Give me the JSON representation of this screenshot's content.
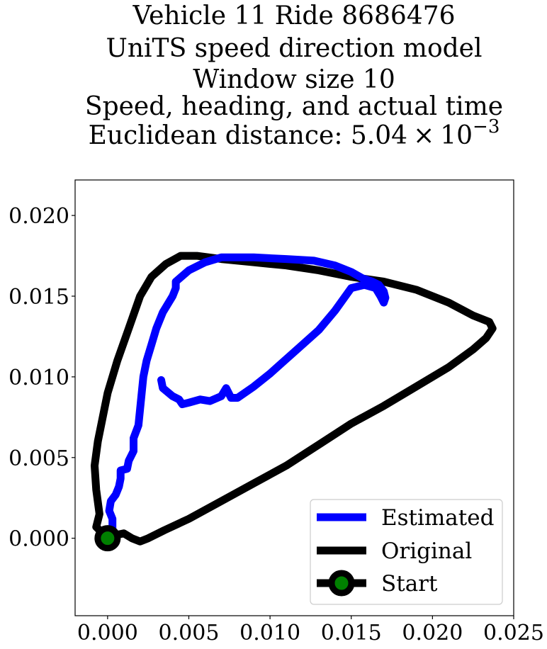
{
  "chart_data": {
    "type": "line",
    "title_lines": [
      "Vehicle 11 Ride 8686476",
      "UniTS speed direction model",
      "Window size 10",
      "Speed, heading, and actual time"
    ],
    "title_distance_prefix": "Euclidean distance: 5.04",
    "title_distance_times": "×",
    "title_distance_base": "10",
    "title_distance_exp": "−3",
    "xlim": [
      -0.002,
      0.025
    ],
    "ylim": [
      -0.0048,
      0.0222
    ],
    "xticks": [
      0.0,
      0.005,
      0.01,
      0.015,
      0.02,
      0.025
    ],
    "xtick_labels": [
      "0.000",
      "0.005",
      "0.010",
      "0.015",
      "0.020",
      "0.025"
    ],
    "yticks": [
      0.0,
      0.005,
      0.01,
      0.015,
      0.02
    ],
    "ytick_labels": [
      "0.000",
      "0.005",
      "0.010",
      "0.015",
      "0.020"
    ],
    "grid": false,
    "legend_position": "lower-right",
    "series": [
      {
        "name": "Estimated",
        "color": "#0000ff",
        "points": [
          [
            0.0,
            0.0
          ],
          [
            0.0003,
            0.0005
          ],
          [
            0.0003,
            0.0012
          ],
          [
            0.0001,
            0.0017
          ],
          [
            0.0002,
            0.0023
          ],
          [
            0.0005,
            0.0027
          ],
          [
            0.0007,
            0.0032
          ],
          [
            0.0008,
            0.0037
          ],
          [
            0.0008,
            0.0042
          ],
          [
            0.0012,
            0.0043
          ],
          [
            0.0013,
            0.0048
          ],
          [
            0.0016,
            0.0054
          ],
          [
            0.0016,
            0.0062
          ],
          [
            0.0019,
            0.007
          ],
          [
            0.002,
            0.008
          ],
          [
            0.0021,
            0.009
          ],
          [
            0.0022,
            0.01
          ],
          [
            0.0024,
            0.011
          ],
          [
            0.0027,
            0.012
          ],
          [
            0.003,
            0.013
          ],
          [
            0.0034,
            0.014
          ],
          [
            0.004,
            0.015
          ],
          [
            0.0042,
            0.0155
          ],
          [
            0.0042,
            0.0159
          ],
          [
            0.005,
            0.0166
          ],
          [
            0.006,
            0.0171
          ],
          [
            0.007,
            0.0174
          ],
          [
            0.009,
            0.0174
          ],
          [
            0.011,
            0.0173
          ],
          [
            0.0127,
            0.0172
          ],
          [
            0.014,
            0.0169
          ],
          [
            0.015,
            0.0165
          ],
          [
            0.0157,
            0.0161
          ],
          [
            0.0163,
            0.0159
          ],
          [
            0.0167,
            0.0157
          ],
          [
            0.017,
            0.0153
          ],
          [
            0.0171,
            0.0149
          ],
          [
            0.017,
            0.0146
          ],
          [
            0.0168,
            0.015
          ],
          [
            0.0165,
            0.0155
          ],
          [
            0.0158,
            0.0157
          ],
          [
            0.015,
            0.0155
          ],
          [
            0.014,
            0.0141
          ],
          [
            0.013,
            0.0129
          ],
          [
            0.012,
            0.012
          ],
          [
            0.011,
            0.0111
          ],
          [
            0.01,
            0.0102
          ],
          [
            0.009,
            0.0094
          ],
          [
            0.008,
            0.0087
          ],
          [
            0.0076,
            0.0087
          ],
          [
            0.0073,
            0.0093
          ],
          [
            0.007,
            0.0088
          ],
          [
            0.0063,
            0.0085
          ],
          [
            0.0057,
            0.0086
          ],
          [
            0.005,
            0.0084
          ],
          [
            0.0046,
            0.0083
          ],
          [
            0.0044,
            0.0086
          ],
          [
            0.004,
            0.0088
          ],
          [
            0.0034,
            0.0093
          ],
          [
            0.0033,
            0.0098
          ]
        ]
      },
      {
        "name": "Original",
        "color": "#000000",
        "points": [
          [
            0.0,
            0.0
          ],
          [
            -0.0007,
            0.0007
          ],
          [
            -0.0005,
            0.0015
          ],
          [
            -0.0007,
            0.003
          ],
          [
            -0.0008,
            0.0045
          ],
          [
            -0.0006,
            0.006
          ],
          [
            -0.0003,
            0.0075
          ],
          [
            0.0,
            0.009
          ],
          [
            0.0006,
            0.011
          ],
          [
            0.0013,
            0.013
          ],
          [
            0.002,
            0.015
          ],
          [
            0.0027,
            0.0162
          ],
          [
            0.0036,
            0.017
          ],
          [
            0.0045,
            0.0175
          ],
          [
            0.0055,
            0.0175
          ],
          [
            0.007,
            0.0173
          ],
          [
            0.009,
            0.0171
          ],
          [
            0.011,
            0.0169
          ],
          [
            0.013,
            0.0166
          ],
          [
            0.015,
            0.0162
          ],
          [
            0.017,
            0.0159
          ],
          [
            0.019,
            0.0154
          ],
          [
            0.021,
            0.0146
          ],
          [
            0.0225,
            0.0138
          ],
          [
            0.0235,
            0.0134
          ],
          [
            0.0237,
            0.013
          ],
          [
            0.0233,
            0.0124
          ],
          [
            0.0225,
            0.0117
          ],
          [
            0.021,
            0.0106
          ],
          [
            0.019,
            0.0094
          ],
          [
            0.017,
            0.0082
          ],
          [
            0.015,
            0.0071
          ],
          [
            0.013,
            0.0058
          ],
          [
            0.011,
            0.0045
          ],
          [
            0.009,
            0.0034
          ],
          [
            0.007,
            0.0023
          ],
          [
            0.005,
            0.0012
          ],
          [
            0.0035,
            0.0005
          ],
          [
            0.0025,
            0.0
          ],
          [
            0.002,
            -0.0002
          ],
          [
            0.0015,
            0.0
          ],
          [
            0.001,
            0.0003
          ],
          [
            0.0005,
            0.0002
          ],
          [
            0.0,
            0.0
          ]
        ]
      },
      {
        "name": "Start",
        "marker_edge_color": "#000000",
        "marker_face_color": "#008000",
        "points": [
          [
            0.0,
            0.0
          ]
        ]
      }
    ]
  }
}
